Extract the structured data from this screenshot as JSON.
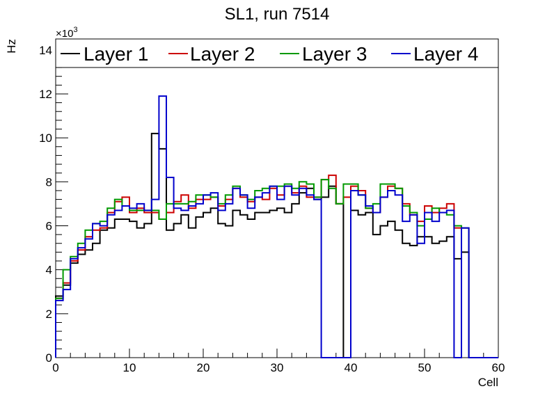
{
  "chart_data": {
    "type": "histogram-step",
    "title": "SL1, run 7514",
    "xlabel": "Cell",
    "ylabel": "Hz",
    "y_multiplier_base": "×10",
    "y_multiplier_exp": "3",
    "xlim": [
      0,
      60
    ],
    "ylim": [
      0,
      14.5
    ],
    "x_ticks": [
      0,
      10,
      20,
      30,
      40,
      50,
      60
    ],
    "x_tick_labels": [
      "0",
      "10",
      "20",
      "30",
      "40",
      "50",
      "60"
    ],
    "y_ticks": [
      0,
      2,
      4,
      6,
      8,
      10,
      12,
      14
    ],
    "y_tick_labels": [
      "0",
      "2",
      "4",
      "6",
      "8",
      "10",
      "12",
      "14"
    ],
    "legend_position": "top",
    "series": [
      {
        "name": "Layer 1",
        "color": "#000000",
        "edges": [
          0,
          1,
          2,
          3,
          4,
          5,
          6,
          7,
          8,
          9,
          10,
          11,
          12,
          13,
          14,
          15,
          16,
          17,
          18,
          19,
          20,
          21,
          22,
          23,
          24,
          25,
          26,
          27,
          28,
          29,
          30,
          31,
          32,
          33,
          34,
          35,
          36,
          37,
          38,
          39,
          40,
          41,
          42,
          43,
          44,
          45,
          46,
          47,
          48,
          49,
          50,
          51,
          52,
          53,
          54,
          55,
          56
        ],
        "values": [
          2.8,
          3.3,
          4.3,
          4.7,
          4.9,
          5.2,
          5.8,
          5.9,
          6.3,
          6.3,
          6.2,
          5.9,
          6.1,
          10.2,
          9.5,
          5.8,
          6.1,
          6.5,
          5.9,
          6.4,
          6.6,
          6.8,
          6.1,
          6.0,
          6.7,
          6.5,
          6.3,
          6.6,
          6.6,
          6.7,
          6.8,
          6.6,
          7.0,
          7.5,
          7.7,
          7.2,
          7.3,
          7.8,
          7.0,
          0.0,
          6.7,
          6.5,
          6.6,
          5.6,
          6.0,
          6.2,
          5.8,
          5.2,
          5.1,
          5.5,
          5.5,
          5.2,
          5.3,
          5.5,
          4.5,
          4.8
        ]
      },
      {
        "name": "Layer 2",
        "color": "#cc0000",
        "edges": [
          0,
          1,
          2,
          3,
          4,
          5,
          6,
          7,
          8,
          9,
          10,
          11,
          12,
          13,
          14,
          15,
          16,
          17,
          18,
          19,
          20,
          21,
          22,
          23,
          24,
          25,
          26,
          27,
          28,
          29,
          30,
          31,
          32,
          33,
          34,
          35,
          36,
          37,
          38,
          39,
          40,
          41,
          42,
          43,
          44,
          45,
          46,
          47,
          48,
          49,
          50,
          51,
          52,
          53,
          54,
          55,
          56
        ],
        "values": [
          2.7,
          3.4,
          4.4,
          4.9,
          5.5,
          5.8,
          5.9,
          6.6,
          7.1,
          7.3,
          6.6,
          6.8,
          6.6,
          6.6,
          6.3,
          6.6,
          7.1,
          7.4,
          6.8,
          7.2,
          7.2,
          7.3,
          6.9,
          7.2,
          7.7,
          7.3,
          7.1,
          7.3,
          7.2,
          7.7,
          7.4,
          7.8,
          7.5,
          7.8,
          7.3,
          7.3,
          8.1,
          8.3,
          7.0,
          7.3,
          7.8,
          7.6,
          6.8,
          6.6,
          7.3,
          7.8,
          7.7,
          7.0,
          6.5,
          6.2,
          6.9,
          6.6,
          6.8,
          7.0,
          5.9,
          5.9
        ]
      },
      {
        "name": "Layer 3",
        "color": "#009900",
        "edges": [
          0,
          1,
          2,
          3,
          4,
          5,
          6,
          7,
          8,
          9,
          10,
          11,
          12,
          13,
          14,
          15,
          16,
          17,
          18,
          19,
          20,
          21,
          22,
          23,
          24,
          25,
          26,
          27,
          28,
          29,
          30,
          31,
          32,
          33,
          34,
          35,
          36,
          37,
          38,
          39,
          40,
          41,
          42,
          43,
          44,
          45,
          46,
          47,
          48,
          49,
          50,
          51,
          52,
          53,
          54,
          55,
          56
        ],
        "values": [
          2.7,
          4.0,
          4.6,
          5.2,
          5.8,
          6.1,
          6.2,
          6.8,
          7.2,
          6.9,
          6.7,
          6.7,
          6.7,
          6.7,
          6.3,
          7.0,
          7.0,
          7.0,
          7.1,
          7.4,
          7.4,
          7.3,
          7.0,
          7.4,
          7.8,
          7.4,
          7.2,
          7.6,
          7.7,
          7.8,
          7.8,
          7.9,
          7.7,
          8.0,
          7.9,
          7.3,
          8.1,
          7.7,
          7.0,
          7.9,
          7.9,
          7.4,
          6.8,
          7.0,
          7.9,
          7.9,
          7.7,
          6.9,
          6.6,
          6.0,
          6.3,
          6.8,
          6.6,
          6.5,
          6.0,
          5.9
        ]
      },
      {
        "name": "Layer 4",
        "color": "#0000cc",
        "edges": [
          0,
          1,
          2,
          3,
          4,
          5,
          6,
          7,
          8,
          9,
          10,
          11,
          12,
          13,
          14,
          15,
          16,
          17,
          18,
          19,
          20,
          21,
          22,
          23,
          24,
          25,
          26,
          27,
          28,
          29,
          30,
          31,
          32,
          33,
          34,
          35,
          36,
          37,
          38,
          39,
          40,
          41,
          42,
          43,
          44,
          45,
          46,
          47,
          48,
          49,
          50,
          51,
          52,
          53,
          54,
          55,
          56
        ],
        "values": [
          2.6,
          3.1,
          4.5,
          5.0,
          5.4,
          6.1,
          6.0,
          6.5,
          6.7,
          6.9,
          6.8,
          7.0,
          6.7,
          7.2,
          11.9,
          8.2,
          6.8,
          6.7,
          6.9,
          7.0,
          7.4,
          7.5,
          6.7,
          7.0,
          7.7,
          7.4,
          6.8,
          7.3,
          7.5,
          7.8,
          7.2,
          7.8,
          7.4,
          7.7,
          7.4,
          7.2,
          0.0,
          0.0,
          0.0,
          0.0,
          7.6,
          7.4,
          6.9,
          6.6,
          7.3,
          7.6,
          7.4,
          6.2,
          6.5,
          5.2,
          6.6,
          6.2,
          6.6,
          6.7,
          0.0,
          5.9
        ]
      }
    ]
  }
}
